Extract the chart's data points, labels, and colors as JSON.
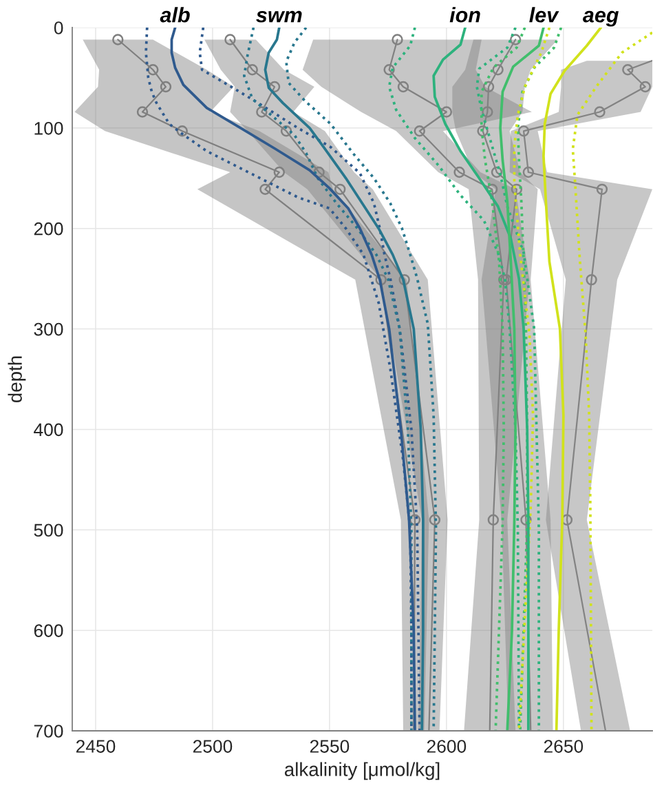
{
  "chart_data": {
    "type": "line",
    "orientation": "horizontal",
    "xlabel": "alkalinity [μmol/kg]",
    "ylabel": "depth",
    "xlim": [
      2440,
      2688
    ],
    "ylim": [
      700,
      0
    ],
    "xticks": [
      2450,
      2500,
      2550,
      2600,
      2650
    ],
    "yticks": [
      0,
      100,
      200,
      300,
      400,
      500,
      600,
      700
    ],
    "grid": true,
    "series": [
      {
        "color": "#838383",
        "line_style": "solid",
        "marker": "none",
        "x": [
          33,
          42,
          59,
          84,
          103,
          144,
          161,
          251,
          490,
          700
        ],
        "values": [
          2688,
          2677.5,
          2685,
          2665.5,
          2633,
          2635,
          2666.5,
          2662,
          2651.5,
          2668
        ],
        "lower": [
          2660,
          2649,
          2649,
          2648,
          2627.5,
          2627,
          2640,
          2651,
          2642.5,
          2657.5
        ],
        "upper": [
          2688,
          2688,
          2688,
          2683,
          2639,
          2643,
          2688,
          2673,
          2660,
          2678.5
        ]
      },
      {
        "color": "#828282",
        "line_style": "solid",
        "marker": "none",
        "x": [
          12,
          42,
          59,
          84,
          103,
          144,
          161,
          251,
          490,
          700
        ],
        "values": [
          2629.5,
          2622,
          2618,
          2617.5,
          2615.5,
          2621.5,
          2630,
          2625.5,
          2634,
          2636
        ],
        "lower": [
          2611.5,
          2608,
          2602.5,
          2602.5,
          2604,
          2611.5,
          2621,
          2615,
          2623.5,
          2626.5
        ],
        "upper": [
          2647.5,
          2636,
          2633.5,
          2632.5,
          2627,
          2631.5,
          2639,
          2636,
          2644.5,
          2645.5
        ]
      },
      {
        "color": "#818181",
        "line_style": "solid",
        "marker": "none",
        "x": [
          12,
          42,
          59,
          84,
          103,
          144,
          161,
          251,
          490,
          700
        ],
        "values": [
          2579,
          2575.5,
          2581.5,
          2600,
          2588.5,
          2605.5,
          2619.5,
          2624.5,
          2620,
          2618.5
        ],
        "lower": [
          2543,
          2538.5,
          2546.5,
          2563.5,
          2578.5,
          2596.5,
          2609.5,
          2613.5,
          2614,
          2607.5
        ],
        "upper": [
          2615,
          2612.5,
          2616.5,
          2636.5,
          2598.5,
          2614.5,
          2629.5,
          2635.5,
          2626,
          2629.5
        ]
      },
      {
        "color": "#808080",
        "line_style": "solid",
        "marker": "none",
        "x": [
          12,
          42,
          59,
          84,
          103,
          144,
          161,
          251,
          490,
          700
        ],
        "values": [
          2507.5,
          2517,
          2526.5,
          2521,
          2531.5,
          2545.5,
          2554.5,
          2582,
          2595,
          2592.5
        ],
        "lower": [
          2496.5,
          2503.5,
          2509.5,
          2507.5,
          2515,
          2530.5,
          2540.5,
          2572,
          2589.5,
          2588
        ],
        "upper": [
          2518.5,
          2530.5,
          2543.5,
          2534.5,
          2548,
          2560.5,
          2568.5,
          2592,
          2600.5,
          2597
        ]
      },
      {
        "color": "#7f7f7f",
        "line_style": "solid",
        "marker": "none",
        "x": [
          12,
          42,
          59,
          84,
          103,
          144,
          161,
          251,
          490,
          700
        ],
        "values": [
          2459.5,
          2474.5,
          2480,
          2470,
          2487,
          2528.5,
          2522.5,
          2572,
          2586.5,
          2586
        ],
        "lower": [
          2444.5,
          2451.5,
          2451,
          2441,
          2454,
          2507.5,
          2493.5,
          2561,
          2580.5,
          2581.5
        ],
        "upper": [
          2474.5,
          2497.5,
          2509,
          2499,
          2520,
          2549.5,
          2551.5,
          2583,
          2592.5,
          2590.5
        ]
      },
      {
        "type": "scatter",
        "color": "#838383",
        "marker": "circle",
        "x": [
          42,
          59,
          84,
          103,
          144,
          161,
          251,
          490
        ],
        "values": [
          2677.5,
          2685,
          2665.5,
          2633,
          2635,
          2666.5,
          2662,
          2651.5
        ]
      },
      {
        "type": "scatter",
        "color": "#828282",
        "marker": "circle",
        "x": [
          12,
          42,
          59,
          84,
          103,
          144,
          161,
          251,
          490
        ],
        "values": [
          2629.5,
          2622,
          2618,
          2617.5,
          2615.5,
          2621.5,
          2630,
          2625.5,
          2634
        ]
      },
      {
        "type": "scatter",
        "color": "#818181",
        "marker": "circle",
        "x": [
          12,
          42,
          59,
          84,
          103,
          144,
          161,
          251,
          490
        ],
        "values": [
          2579,
          2575.5,
          2581.5,
          2600,
          2588.5,
          2605.5,
          2619.5,
          2624.5,
          2620
        ]
      },
      {
        "type": "scatter",
        "color": "#808080",
        "marker": "circle",
        "x": [
          12,
          42,
          59,
          84,
          103,
          144,
          161,
          251,
          490
        ],
        "values": [
          2507.5,
          2517,
          2526.5,
          2521,
          2531.5,
          2545.5,
          2554.5,
          2582,
          2595
        ]
      },
      {
        "type": "scatter",
        "color": "#7f7f7f",
        "marker": "circle",
        "x": [
          12,
          42,
          59,
          84,
          103,
          144,
          161,
          251,
          490
        ],
        "values": [
          2459.5,
          2474.5,
          2480,
          2470,
          2487,
          2528.5,
          2522.5,
          2572,
          2586.5
        ]
      },
      {
        "color": "#2f5a8e",
        "line_style": "dotted",
        "marker": "none",
        "x": [
          0,
          25,
          50,
          64,
          75,
          96,
          105,
          123,
          146,
          169,
          180,
          200,
          226,
          274,
          340,
          431,
          500,
          600,
          700
        ],
        "values": [
          2472,
          2471.5,
          2472.5,
          2474,
          2476,
          2481.5,
          2486.5,
          2497.5,
          2517,
          2536.5,
          2550,
          2557,
          2564.5,
          2571,
          2576,
          2581.5,
          2584.5,
          2585,
          2585
        ]
      },
      {
        "color": "#2f5a8e",
        "line_style": "dotted",
        "marker": "none",
        "x": [
          0,
          25,
          42,
          59,
          73,
          100,
          119,
          145,
          175,
          200,
          226,
          250,
          300,
          400,
          500,
          700
        ],
        "values": [
          2496,
          2494.5,
          2495.5,
          2508,
          2518,
          2536.5,
          2550.5,
          2563,
          2569,
          2571.5,
          2573.5,
          2576,
          2580,
          2585,
          2587.5,
          2588.5
        ]
      },
      {
        "color": "#28778e",
        "line_style": "dotted",
        "marker": "none",
        "x": [
          0,
          27,
          48,
          71,
          91,
          107,
          125,
          150,
          175,
          200,
          226,
          250,
          300,
          400,
          500,
          700
        ],
        "values": [
          2517.5,
          2515,
          2513.5,
          2517,
          2527,
          2535,
          2540,
          2545,
          2553,
          2562,
          2570,
          2575,
          2580,
          2583.5,
          2585,
          2585
        ]
      },
      {
        "color": "#28778e",
        "line_style": "dotted",
        "marker": "none",
        "x": [
          0,
          15,
          34,
          55,
          73,
          96,
          125,
          150,
          175,
          200,
          226,
          250,
          295,
          386,
          500,
          700
        ],
        "values": [
          2540,
          2535,
          2531.5,
          2532.5,
          2539.5,
          2550.5,
          2560,
          2569,
          2576,
          2581,
          2584.5,
          2587.5,
          2592,
          2594.5,
          2595.5,
          2594.5
        ]
      },
      {
        "color": "#2db27d",
        "line_style": "dotted",
        "marker": "none",
        "x": [
          0,
          18,
          40,
          59,
          82,
          110,
          137,
          167,
          192,
          224,
          250,
          300,
          400,
          500,
          700
        ],
        "values": [
          2586.5,
          2584.5,
          2577,
          2575.5,
          2578.5,
          2586.5,
          2596.5,
          2606,
          2616,
          2622,
          2625,
          2627,
          2629.5,
          2630.5,
          2631
        ]
      },
      {
        "color": "#2db27d",
        "line_style": "dotted",
        "marker": "none",
        "x": [
          0,
          20,
          41,
          59,
          82,
          114,
          146,
          178,
          224,
          300,
          400,
          500,
          700
        ],
        "values": [
          2629.5,
          2626,
          2614,
          2613,
          2615,
          2619,
          2623,
          2626,
          2633,
          2637.5,
          2638.5,
          2639.5,
          2639.5
        ]
      },
      {
        "color": "#41be6c",
        "line_style": "dotted",
        "marker": "none",
        "x": [
          0,
          20,
          40,
          64,
          100,
          132,
          173,
          233,
          300,
          400,
          493,
          700
        ],
        "values": [
          2633.5,
          2630,
          2620,
          2615,
          2615,
          2616.5,
          2619.5,
          2622.5,
          2624,
          2624.5,
          2624,
          2621
        ]
      },
      {
        "color": "#41be6c",
        "line_style": "dotted",
        "marker": "none",
        "x": [
          0,
          20,
          40,
          64,
          100,
          132,
          173,
          233,
          300,
          400,
          493,
          700
        ],
        "values": [
          2649,
          2646,
          2637.5,
          2632.5,
          2630.5,
          2631,
          2632,
          2633,
          2634,
          2634.5,
          2634.5,
          2631.5
        ]
      },
      {
        "color": "#d1e21c",
        "line_style": "dotted",
        "marker": "none",
        "x": [
          0,
          25,
          59,
          87,
          119,
          155,
          226,
          306,
          386,
          477,
          700
        ],
        "values": [
          2644,
          2640.5,
          2633.5,
          2630.5,
          2629,
          2629,
          2631.5,
          2635.5,
          2637,
          2636,
          2631
        ]
      },
      {
        "color": "#d1e21c",
        "line_style": "dotted",
        "marker": "none",
        "x": [
          5,
          25,
          59,
          87,
          121,
          155,
          231,
          306,
          386,
          477,
          700
        ],
        "values": [
          2688,
          2675,
          2664,
          2656,
          2654,
          2655,
          2657,
          2659.5,
          2661,
          2661.5,
          2662
        ]
      },
      {
        "name": "alb",
        "color": "#2f5a8e",
        "line_style": "solid",
        "marker": "none",
        "x": [
          0,
          12,
          25,
          40,
          57,
          80,
          100,
          121,
          142,
          160,
          180,
          200,
          226,
          251,
          300,
          400,
          490,
          600,
          700
        ],
        "values": [
          2484,
          2482.5,
          2482.5,
          2484,
          2487.5,
          2497.5,
          2512,
          2527,
          2541.5,
          2550,
          2558,
          2563,
          2568,
          2571.5,
          2575.5,
          2580.5,
          2584,
          2586,
          2586.5
        ]
      },
      {
        "name": "swm",
        "color": "#28778e",
        "line_style": "solid",
        "marker": "none",
        "x": [
          0,
          12,
          25,
          42,
          60,
          75,
          100,
          119,
          150,
          175,
          200,
          226,
          251,
          300,
          400,
          490,
          600,
          700
        ],
        "values": [
          2528.5,
          2527.5,
          2524,
          2522.5,
          2524,
          2530,
          2541.5,
          2547.5,
          2557,
          2564,
          2571,
          2577,
          2581.5,
          2586,
          2589,
          2590,
          2590,
          2589.5
        ]
      },
      {
        "name": "ion",
        "color": "#2db27d",
        "line_style": "solid",
        "marker": "none",
        "x": [
          0,
          17,
          32,
          48,
          69,
          96,
          123,
          150,
          178,
          210,
          250,
          300,
          400,
          493,
          600,
          700
        ],
        "values": [
          2608,
          2606,
          2598.5,
          2594.5,
          2595,
          2599.5,
          2606,
          2614,
          2622,
          2627.5,
          2631,
          2633,
          2634.5,
          2635,
          2635,
          2635
        ]
      },
      {
        "name": "lev",
        "color": "#41be6c",
        "line_style": "solid",
        "marker": "none",
        "x": [
          0,
          18,
          39,
          64,
          100,
          132,
          173,
          233,
          300,
          400,
          493,
          600,
          700
        ],
        "values": [
          2641.5,
          2639.5,
          2628.5,
          2624,
          2623,
          2624,
          2626,
          2627.5,
          2629,
          2629.5,
          2629,
          2628,
          2626
        ]
      },
      {
        "name": "aeg",
        "color": "#d1e21c",
        "line_style": "solid",
        "marker": "none",
        "x": [
          0,
          18,
          43,
          66,
          96,
          128,
          173,
          233,
          300,
          386,
          490,
          600,
          700
        ],
        "values": [
          2666,
          2660,
          2650.5,
          2644.5,
          2642,
          2641.5,
          2642.5,
          2644,
          2648.5,
          2650,
          2649.5,
          2648,
          2647
        ]
      }
    ]
  }
}
